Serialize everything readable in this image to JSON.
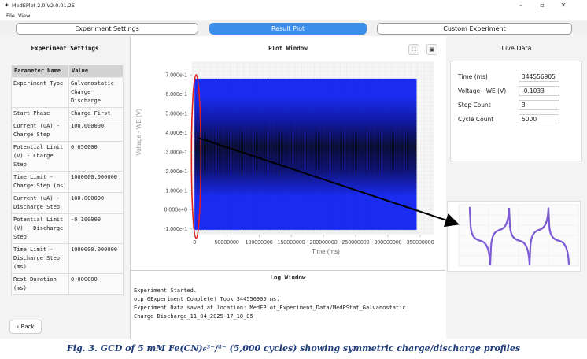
{
  "window": {
    "title": "MedEPlot 2.0 V2.0.01.25",
    "controls": [
      "–",
      "▫",
      "✕"
    ]
  },
  "menu": [
    "File",
    "View"
  ],
  "tabs": [
    {
      "label": "Experiment Settings",
      "active": false
    },
    {
      "label": "Result Plot",
      "active": true
    },
    {
      "label": "Custom Experiment",
      "active": false
    }
  ],
  "settings": {
    "title": "Experiment Settings",
    "col_param": "Parameter Name",
    "col_value": "Value",
    "rows": [
      {
        "param": "Experiment Type",
        "value": "Galvanostatic Charge Discharge"
      },
      {
        "param": "Start Phase",
        "value": "Charge First"
      },
      {
        "param": "Current (uA) - Charge Step",
        "value": "100.000000"
      },
      {
        "param": "Potential Limit (V) - Charge Step",
        "value": "0.650000"
      },
      {
        "param": "Time Limit - Charge Step (ms)",
        "value": "1000000.000000"
      },
      {
        "param": "Current (uA) - Discharge Step",
        "value": "100.000000"
      },
      {
        "param": "Potential Limit (V) - Discharge Step",
        "value": "-0.100000"
      },
      {
        "param": "Time Limit - Discharge Step (ms)",
        "value": "1000000.000000"
      },
      {
        "param": "Rest Duration (ms)",
        "value": "0.000000"
      }
    ],
    "back_label": "Back"
  },
  "plot": {
    "title": "Plot Window",
    "tools": [
      "⛶",
      "▣"
    ],
    "chart_data": {
      "type": "line",
      "xlabel": "Time (ms)",
      "ylabel": "Voltage - WE (V)",
      "x_ticks": [
        0,
        50000000,
        100000000,
        150000000,
        200000000,
        250000000,
        300000000,
        350000000
      ],
      "x_tick_labels": [
        "0",
        "50000000",
        "100000000",
        "150000000",
        "200000000",
        "250000000",
        "300000000",
        "350000000"
      ],
      "y_ticks": [
        -0.1,
        0.0,
        0.1,
        0.2,
        0.3,
        0.4,
        0.5,
        0.6,
        0.7
      ],
      "y_tick_labels": [
        "-1.000e-1",
        "0.000e+0",
        "1.000e-1",
        "2.000e-1",
        "3.000e-1",
        "4.000e-1",
        "5.000e-1",
        "6.000e-1",
        "7.000e-1"
      ],
      "xlim": [
        -4000000,
        372000000
      ],
      "ylim": [
        -0.13,
        0.77
      ],
      "data_extent": {
        "x": [
          0,
          344556905
        ],
        "y": [
          -0.105,
          0.68
        ]
      },
      "grid": true,
      "series_color": "#1a2cf0",
      "dense_color": "#0a0a1e",
      "highlight_color": "#e02020"
    }
  },
  "log": {
    "title": "Log Window",
    "lines": [
      "Experiment Started.",
      "ocp 0Experiment Complete! Took 344556905 ms.",
      "Experiment Data saved at location: MedEPlot_Experiment_Data/MedPStat_Galvanostatic",
      "Charge Discharge_11_04_2025-17_18_05"
    ]
  },
  "live": {
    "title": "Live Data",
    "fields": [
      {
        "label": "Time (ms)",
        "value": "344556905"
      },
      {
        "label": "Voltage - WE (V)",
        "value": "-0.1033"
      },
      {
        "label": "Step Count",
        "value": "3"
      },
      {
        "label": "Cycle Count",
        "value": "5000"
      }
    ]
  },
  "inset": {
    "line_color": "#4a2aa0"
  },
  "caption": "Fig. 3. GCD of 5 mM Fe(CN)₆³⁻/⁴⁻ (5,000 cycles) showing symmetric charge/discharge profiles"
}
